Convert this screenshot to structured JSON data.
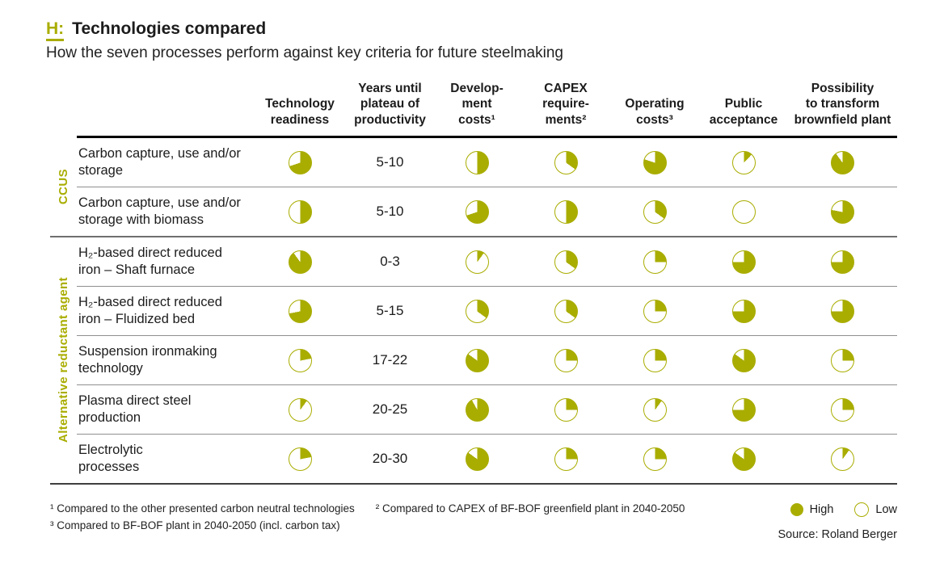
{
  "colors": {
    "accent": "#a9ad00",
    "text": "#1c1c1c"
  },
  "title": {
    "tag": "H:",
    "heading": "Technologies compared",
    "subtitle": "How the seven processes perform against key criteria for future steelmaking"
  },
  "columns": [
    "Technology\nreadiness",
    "Years until\nplateau of\nproductivity",
    "Develop-\nment\ncosts¹",
    "CAPEX\nrequire-\nments²",
    "Operating\ncosts³",
    "Public\nacceptance",
    "Possibility\nto transform\nbrownfield plant"
  ],
  "pie_column_keys": [
    "tech",
    "dev",
    "capex",
    "operating",
    "public",
    "possibility"
  ],
  "groups": [
    {
      "label": "CCUS",
      "rows": [
        {
          "name": "Carbon capture, use and/or\nstorage",
          "years": "5-10",
          "ratings": {
            "tech": 0.7,
            "dev": 0.5,
            "capex": 0.35,
            "operating": 0.8,
            "public": 0.12,
            "possibility": 0.9
          }
        },
        {
          "name": "Carbon capture, use and/or\nstorage with biomass",
          "years": "5-10",
          "ratings": {
            "tech": 0.5,
            "dev": 0.7,
            "capex": 0.5,
            "operating": 0.35,
            "public": 0.0,
            "possibility": 0.78
          }
        }
      ]
    },
    {
      "label": "Alternative reductant agent",
      "rows": [
        {
          "name": "H₂-based direct reduced\niron – Shaft furnace",
          "years": "0-3",
          "ratings": {
            "tech": 0.9,
            "dev": 0.1,
            "capex": 0.35,
            "operating": 0.25,
            "public": 0.75,
            "possibility": 0.75
          }
        },
        {
          "name": "H₂-based direct reduced\niron – Fluidized bed",
          "years": "5-15",
          "ratings": {
            "tech": 0.72,
            "dev": 0.35,
            "capex": 0.35,
            "operating": 0.25,
            "public": 0.75,
            "possibility": 0.75
          }
        },
        {
          "name": "Suspension ironmaking\ntechnology",
          "years": "17-22",
          "ratings": {
            "tech": 0.22,
            "dev": 0.85,
            "capex": 0.25,
            "operating": 0.25,
            "public": 0.85,
            "possibility": 0.25
          }
        },
        {
          "name": "Plasma direct steel\nproduction",
          "years": "20-25",
          "ratings": {
            "tech": 0.1,
            "dev": 0.92,
            "capex": 0.25,
            "operating": 0.1,
            "public": 0.75,
            "possibility": 0.25
          }
        },
        {
          "name": "Electrolytic\nprocesses",
          "years": "20-30",
          "ratings": {
            "tech": 0.22,
            "dev": 0.85,
            "capex": 0.25,
            "operating": 0.25,
            "public": 0.85,
            "possibility": 0.1
          }
        }
      ]
    }
  ],
  "footnotes": [
    "¹ Compared to the other presented carbon neutral technologies",
    "² Compared to CAPEX of BF-BOF greenfield plant in 2040-2050",
    "³ Compared to BF-BOF plant in 2040-2050 (incl. carbon tax)"
  ],
  "legend": {
    "high_label": "High",
    "low_label": "Low"
  },
  "source": "Source: Roland Berger",
  "chart_data": {
    "type": "table",
    "title": "H: Technologies compared",
    "subtitle": "How the seven processes perform against key criteria for future steelmaking",
    "rating_scale": "pie fill fraction, 0 = Low, 1 = High (filled circle = High, empty circle = Low)",
    "columns": [
      "Technology readiness",
      "Years until plateau of productivity",
      "Development costs",
      "CAPEX requirements",
      "Operating costs",
      "Public acceptance",
      "Possibility to transform brownfield plant"
    ],
    "rows": [
      {
        "group": "CCUS",
        "name": "Carbon capture, use and/or storage",
        "years_until_plateau": "5-10",
        "ratings": {
          "technology_readiness": 0.7,
          "development_costs": 0.5,
          "capex_requirements": 0.35,
          "operating_costs": 0.8,
          "public_acceptance": 0.12,
          "transform_brownfield": 0.9
        }
      },
      {
        "group": "CCUS",
        "name": "Carbon capture, use and/or storage with biomass",
        "years_until_plateau": "5-10",
        "ratings": {
          "technology_readiness": 0.5,
          "development_costs": 0.7,
          "capex_requirements": 0.5,
          "operating_costs": 0.35,
          "public_acceptance": 0.0,
          "transform_brownfield": 0.78
        }
      },
      {
        "group": "Alternative reductant agent",
        "name": "H₂-based direct reduced iron – Shaft furnace",
        "years_until_plateau": "0-3",
        "ratings": {
          "technology_readiness": 0.9,
          "development_costs": 0.1,
          "capex_requirements": 0.35,
          "operating_costs": 0.25,
          "public_acceptance": 0.75,
          "transform_brownfield": 0.75
        }
      },
      {
        "group": "Alternative reductant agent",
        "name": "H₂-based direct reduced iron – Fluidized bed",
        "years_until_plateau": "5-15",
        "ratings": {
          "technology_readiness": 0.72,
          "development_costs": 0.35,
          "capex_requirements": 0.35,
          "operating_costs": 0.25,
          "public_acceptance": 0.75,
          "transform_brownfield": 0.75
        }
      },
      {
        "group": "Alternative reductant agent",
        "name": "Suspension ironmaking technology",
        "years_until_plateau": "17-22",
        "ratings": {
          "technology_readiness": 0.22,
          "development_costs": 0.85,
          "capex_requirements": 0.25,
          "operating_costs": 0.25,
          "public_acceptance": 0.85,
          "transform_brownfield": 0.25
        }
      },
      {
        "group": "Alternative reductant agent",
        "name": "Plasma direct steel production",
        "years_until_plateau": "20-25",
        "ratings": {
          "technology_readiness": 0.1,
          "development_costs": 0.92,
          "capex_requirements": 0.25,
          "operating_costs": 0.1,
          "public_acceptance": 0.75,
          "transform_brownfield": 0.25
        }
      },
      {
        "group": "Alternative reductant agent",
        "name": "Electrolytic processes",
        "years_until_plateau": "20-30",
        "ratings": {
          "technology_readiness": 0.22,
          "development_costs": 0.85,
          "capex_requirements": 0.25,
          "operating_costs": 0.25,
          "public_acceptance": 0.85,
          "transform_brownfield": 0.1
        }
      }
    ],
    "legend": {
      "filled": "High",
      "empty": "Low"
    },
    "source": "Source: Roland Berger"
  }
}
